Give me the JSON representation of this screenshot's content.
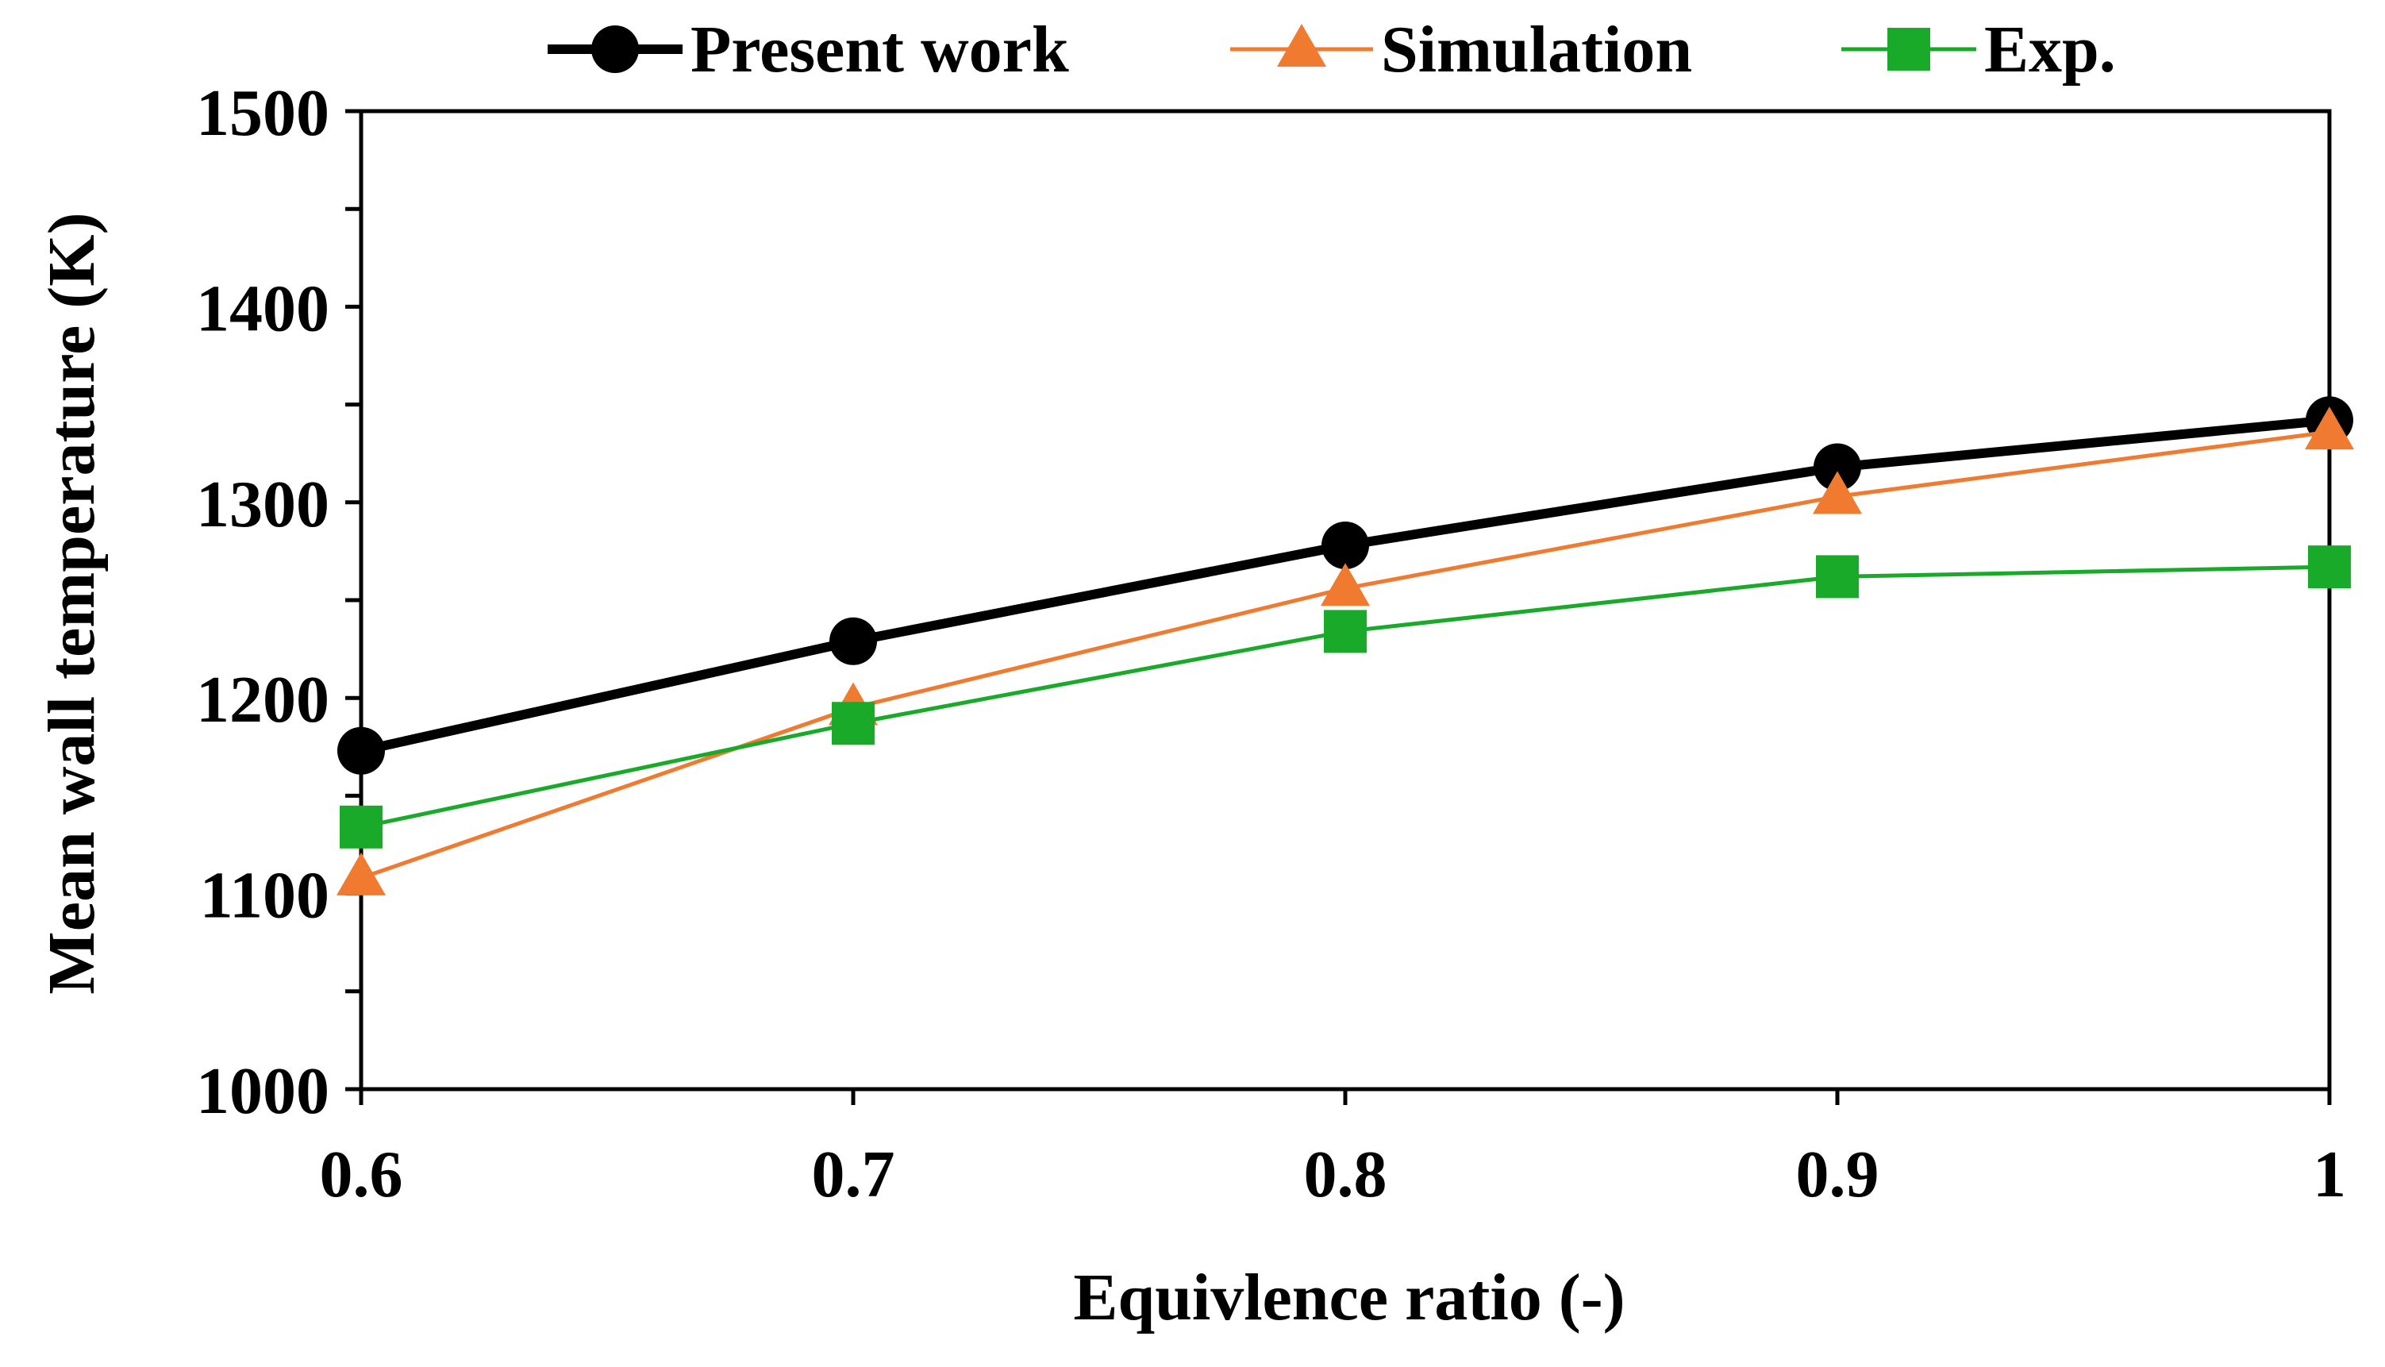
{
  "chart_data": {
    "type": "line",
    "title": "",
    "xlabel": "Equivlence ratio (-)",
    "ylabel": "Mean wall temperature (K)",
    "x": [
      0.6,
      0.7,
      0.8,
      0.9,
      1.0
    ],
    "xlim": [
      0.6,
      1.0
    ],
    "ylim": [
      1000,
      1500
    ],
    "x_ticks": [
      0.6,
      0.7,
      0.8,
      0.9,
      1.0
    ],
    "x_tick_labels": [
      "0.6",
      "0.7",
      "0.8",
      "0.9",
      "1"
    ],
    "y_ticks": [
      1000,
      1100,
      1200,
      1300,
      1400,
      1500
    ],
    "y_tick_labels": [
      "1000",
      "1100",
      "1200",
      "1300",
      "1400",
      "1500"
    ],
    "grid": false,
    "legend_position": "top",
    "series": [
      {
        "name": "Present work",
        "color": "#000000",
        "marker": "circle",
        "values": [
          1173,
          1229,
          1278,
          1318,
          1342
        ]
      },
      {
        "name": "Simulation",
        "color": "#F07A30",
        "marker": "triangle",
        "values": [
          1108,
          1195,
          1256,
          1303,
          1336
        ]
      },
      {
        "name": "Exp.",
        "color": "#1AAA2A",
        "marker": "square",
        "values": [
          1134,
          1187,
          1234,
          1262,
          1267
        ]
      }
    ]
  }
}
